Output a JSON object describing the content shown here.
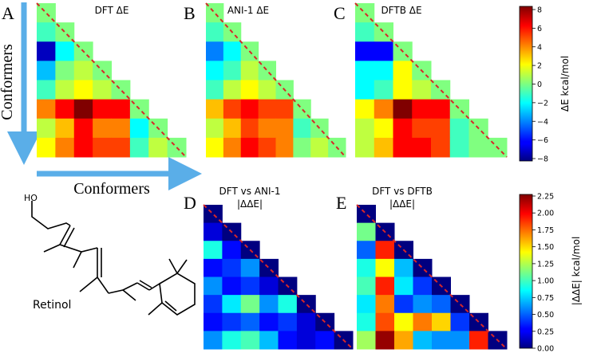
{
  "figure": {
    "panel_letters": [
      "A",
      "B",
      "C",
      "D",
      "E"
    ],
    "axis_label_vertical": "Conformers",
    "axis_label_horizontal": "Conformers",
    "molecule_name": "Retinol",
    "molecule_atom": "HO",
    "arrow_color": "#5aaee8",
    "diagonal_color": "#d62728"
  },
  "chart_data": [
    {
      "type": "heatmap",
      "panel": "A",
      "title": "DFT ΔE",
      "colormap": "jet",
      "clim": [
        -8,
        8
      ],
      "shape": "lower-triangle",
      "rows": [
        [
          0
        ],
        [
          -1,
          0
        ],
        [
          -7,
          -2,
          0
        ],
        [
          -3,
          0,
          1,
          0
        ],
        [
          -1,
          1,
          2,
          1,
          0
        ],
        [
          4,
          6,
          8,
          6,
          6,
          0
        ],
        [
          1,
          3,
          6,
          4,
          4,
          -2,
          0
        ],
        [
          2,
          4,
          6,
          5,
          5,
          -1,
          1,
          0
        ]
      ]
    },
    {
      "type": "heatmap",
      "panel": "B",
      "title": "ANI-1 ΔE",
      "colormap": "jet",
      "clim": [
        -8,
        8
      ],
      "shape": "lower-triangle",
      "rows": [
        [
          0
        ],
        [
          -1,
          0
        ],
        [
          -4,
          -2,
          0
        ],
        [
          -2,
          -1,
          1,
          0
        ],
        [
          -1,
          1,
          2,
          1,
          0
        ],
        [
          3,
          5,
          6,
          5,
          5,
          0
        ],
        [
          1,
          3,
          5,
          4,
          4,
          -1,
          0
        ],
        [
          2,
          4,
          6,
          5,
          4,
          0,
          1,
          0
        ]
      ]
    },
    {
      "type": "heatmap",
      "panel": "C",
      "title": "DFTB ΔE",
      "colormap": "jet",
      "clim": [
        -8,
        8
      ],
      "shape": "lower-triangle",
      "rows": [
        [
          0
        ],
        [
          -1,
          0
        ],
        [
          -6,
          -6,
          0
        ],
        [
          -2,
          -2,
          2,
          0
        ],
        [
          -2,
          -1,
          2,
          1,
          0
        ],
        [
          2,
          4,
          8,
          6,
          6,
          0
        ],
        [
          1,
          2,
          6,
          5,
          5,
          -1,
          0
        ],
        [
          1,
          3,
          6,
          6,
          5,
          -1,
          0,
          0
        ]
      ],
      "colorbar": {
        "label": "ΔE kcal/mol",
        "ticks": [
          "8",
          "6",
          "4",
          "2",
          "0",
          "−2",
          "−4",
          "−6",
          "−8"
        ]
      }
    },
    {
      "type": "heatmap",
      "panel": "D",
      "title": "DFT vs ANI-1",
      "subtitle": "|ΔΔE|",
      "colormap": "jet",
      "clim": [
        0,
        2.25
      ],
      "shape": "lower-triangle",
      "rows": [
        [
          0
        ],
        [
          0.2,
          0
        ],
        [
          0.9,
          0.3,
          0
        ],
        [
          0.3,
          0.4,
          0.6,
          0
        ],
        [
          0.6,
          0.3,
          0.4,
          0.2,
          0
        ],
        [
          0.4,
          0.8,
          1.1,
          0.6,
          0.9,
          0
        ],
        [
          0.3,
          0.4,
          0.5,
          0.3,
          0.4,
          0.2,
          0
        ],
        [
          0.6,
          0.9,
          1.0,
          0.7,
          0.3,
          0.2,
          0.3,
          0
        ]
      ]
    },
    {
      "type": "heatmap",
      "panel": "E",
      "title": "DFT vs DFTB",
      "subtitle": "|ΔΔE|",
      "colormap": "jet",
      "clim": [
        0,
        2.25
      ],
      "shape": "lower-triangle",
      "rows": [
        [
          0
        ],
        [
          1.1,
          0
        ],
        [
          0.5,
          1.9,
          0
        ],
        [
          0.9,
          1.4,
          0.7,
          0
        ],
        [
          1.0,
          1.9,
          0.8,
          0.4,
          0
        ],
        [
          0.8,
          1.7,
          0.4,
          0.6,
          0.5,
          0
        ],
        [
          0.9,
          1.8,
          1.4,
          1.7,
          1.5,
          0.4,
          0
        ],
        [
          1.2,
          2.2,
          1.6,
          0.7,
          0.6,
          0.6,
          1.9,
          0
        ]
      ],
      "colorbar": {
        "label": "|ΔΔE| kcal/mol",
        "ticks": [
          "2.25",
          "2.00",
          "1.75",
          "1.50",
          "1.25",
          "1.00",
          "0.75",
          "0.50",
          "0.25",
          "0.00"
        ]
      }
    }
  ]
}
